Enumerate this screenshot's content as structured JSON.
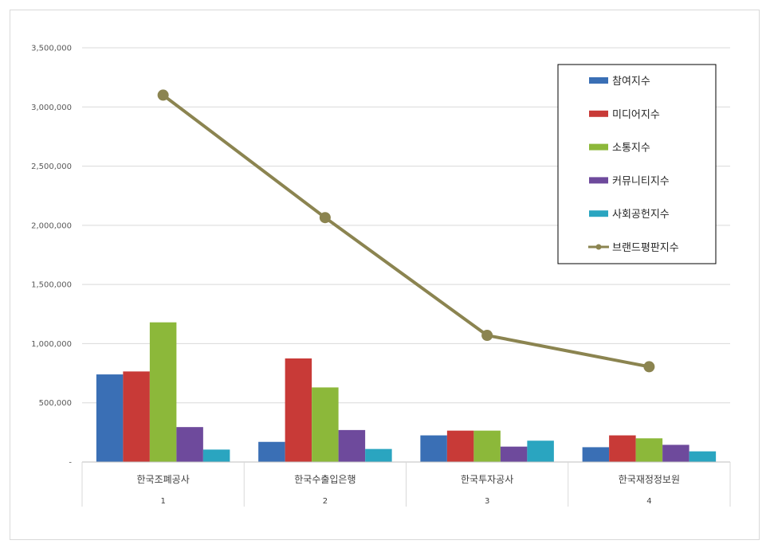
{
  "chart_data": {
    "type": "bar",
    "categories": [
      "한국조폐공사",
      "한국수출입은행",
      "한국투자공사",
      "한국재정정보원"
    ],
    "category_index": [
      "1",
      "2",
      "3",
      "4"
    ],
    "series": [
      {
        "name": "참여지수",
        "type": "bar",
        "color": "#3a6fb5",
        "values": [
          740000,
          170000,
          225000,
          125000
        ]
      },
      {
        "name": "미디어지수",
        "type": "bar",
        "color": "#c83a37",
        "values": [
          765000,
          875000,
          265000,
          225000
        ]
      },
      {
        "name": "소통지수",
        "type": "bar",
        "color": "#8cb83a",
        "values": [
          1180000,
          630000,
          265000,
          200000
        ]
      },
      {
        "name": "커뮤니티지수",
        "type": "bar",
        "color": "#6e4a9c",
        "values": [
          295000,
          270000,
          130000,
          145000
        ]
      },
      {
        "name": "사회공헌지수",
        "type": "bar",
        "color": "#2aa5c0",
        "values": [
          105000,
          110000,
          180000,
          90000
        ]
      },
      {
        "name": "브랜드평판지수",
        "type": "line",
        "color": "#8b8450",
        "values": [
          3100000,
          2065000,
          1070000,
          805000
        ]
      }
    ],
    "ylim": [
      0,
      3500000
    ],
    "yticks": [
      0,
      500000,
      1000000,
      1500000,
      2000000,
      2500000,
      3000000,
      3500000
    ],
    "ytick_labels": [
      "-",
      "500,000",
      "1,000,000",
      "1,500,000",
      "2,000,000",
      "2,500,000",
      "3,000,000",
      "3,500,000"
    ],
    "grid": true,
    "legend_position": "top-right"
  }
}
